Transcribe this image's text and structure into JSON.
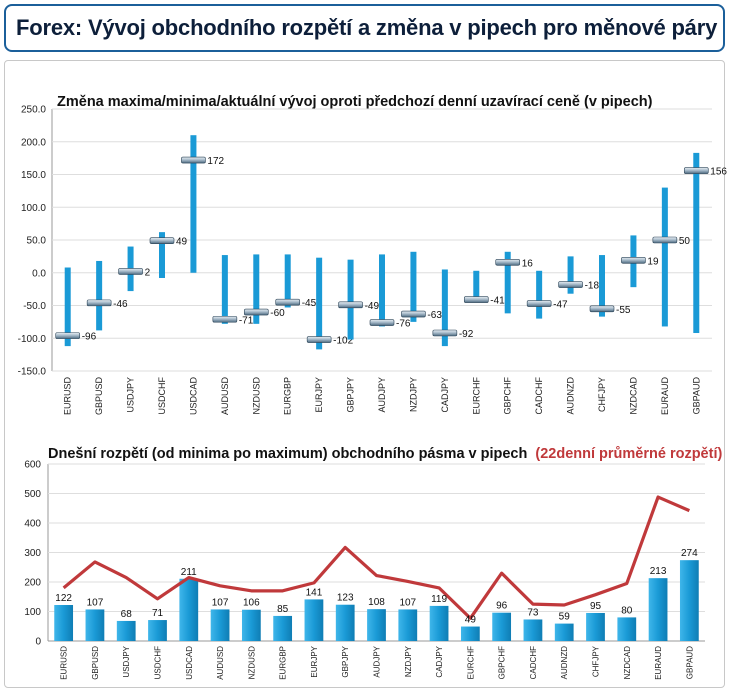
{
  "page_title": "Forex: Vývoj obchodního rozpětí a změna v pipech pro měnové páry",
  "chart_data": [
    {
      "type": "range",
      "title": "Změna maxima/minima/aktuální vývoj oproti předchozí denní uzavírací ceně (v pipech)",
      "categories": [
        "EURUSD",
        "GBPUSD",
        "USDJPY",
        "USDCHF",
        "USDCAD",
        "AUDUSD",
        "NZDUSD",
        "EURGBP",
        "EURJPY",
        "GBPJPY",
        "AUDJPY",
        "NZDJPY",
        "CADJPY",
        "EURCHF",
        "GBPCHF",
        "CADCHF",
        "AUDNZD",
        "CHFJPY",
        "NZDCAD",
        "EURAUD",
        "GBPAUD"
      ],
      "high": [
        8,
        18,
        40,
        62,
        210,
        27,
        28,
        28,
        23,
        20,
        28,
        32,
        5,
        3,
        32,
        3,
        25,
        27,
        57,
        130,
        183
      ],
      "low": [
        -112,
        -88,
        -28,
        -8,
        0,
        -78,
        -78,
        -53,
        -117,
        -102,
        -82,
        -75,
        -112,
        -43,
        -62,
        -70,
        -32,
        -67,
        -22,
        -82,
        -92
      ],
      "current": [
        -96,
        -46,
        2,
        49,
        172,
        -71,
        -60,
        -45,
        -102,
        -49,
        -76,
        -63,
        -92,
        -41,
        16,
        -47,
        -18,
        -55,
        19,
        50,
        156
      ],
      "ylim": [
        -150,
        250
      ],
      "yticks": [
        "-150.0",
        "-100.0",
        "-50.0",
        "0.0",
        "50.0",
        "100.0",
        "150.0",
        "200.0",
        "250.0"
      ],
      "grid": true,
      "bar_color": "#1a9ad6"
    },
    {
      "type": "bar+line",
      "title": "Dnešní rozpětí (od minima po maximum) obchodního pásma v pipech",
      "title_extra": "(22denní průměrné rozpětí)",
      "categories": [
        "EURUSD",
        "GBPUSD",
        "USDJPY",
        "USDCHF",
        "USDCAD",
        "AUDUSD",
        "NZDUSD",
        "EURGBP",
        "EURJPY",
        "GBPJPY",
        "AUDJPY",
        "NZDJPY",
        "CADJPY",
        "EURCHF",
        "GBPCHF",
        "CADCHF",
        "AUDNZD",
        "CHFJPY",
        "NZDCAD",
        "EURAUD",
        "GBPAUD"
      ],
      "series": [
        {
          "values": [
            122,
            107,
            68,
            71,
            211,
            107,
            106,
            85,
            141,
            123,
            108,
            107,
            119,
            49,
            96,
            73,
            59,
            95,
            80,
            213,
            274
          ]
        },
        {
          "values": [
            180,
            268,
            215,
            143,
            215,
            187,
            170,
            170,
            197,
            317,
            222,
            202,
            180,
            77,
            230,
            125,
            122,
            157,
            195,
            488,
            442
          ]
        }
      ],
      "ylim": [
        0,
        600
      ],
      "yticks": [
        "0",
        "100",
        "200",
        "300",
        "400",
        "500",
        "600"
      ],
      "grid": true,
      "bar_color": "#1a9ad6",
      "line_color": "#c0393b"
    }
  ]
}
